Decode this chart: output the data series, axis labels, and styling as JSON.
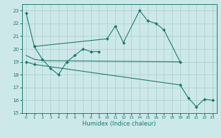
{
  "xlabel": "Humidex (Indice chaleur)",
  "bg_color": "#cce8e8",
  "line_color": "#1a7a6e",
  "grid_color": "#aacccc",
  "xlim": [
    -0.5,
    23.5
  ],
  "ylim": [
    15,
    23.5
  ],
  "yticks": [
    15,
    16,
    17,
    18,
    19,
    20,
    21,
    22,
    23
  ],
  "xticks": [
    0,
    1,
    2,
    3,
    4,
    5,
    6,
    7,
    8,
    9,
    10,
    11,
    12,
    13,
    14,
    15,
    16,
    17,
    18,
    19,
    20,
    21,
    22,
    23
  ],
  "series": [
    {
      "x": [
        0,
        1,
        10,
        11,
        12,
        14,
        15,
        16,
        17,
        19
      ],
      "y": [
        22.8,
        20.2,
        20.8,
        21.8,
        20.5,
        23.0,
        22.2,
        22.0,
        21.5,
        19.0
      ],
      "has_markers": true
    },
    {
      "x": [
        1,
        2,
        3,
        4,
        5,
        6,
        7,
        8,
        9
      ],
      "y": [
        20.2,
        19.2,
        18.5,
        18.0,
        19.0,
        19.5,
        20.0,
        19.8,
        19.8
      ],
      "has_markers": true
    },
    {
      "x": [
        0,
        1,
        2,
        19
      ],
      "y": [
        19.5,
        19.2,
        19.1,
        19.0
      ],
      "has_markers": false
    },
    {
      "x": [
        0,
        1,
        19,
        20,
        21,
        22,
        23
      ],
      "y": [
        19.0,
        18.8,
        17.2,
        16.2,
        15.5,
        16.1,
        16.0
      ],
      "has_markers": true
    }
  ]
}
